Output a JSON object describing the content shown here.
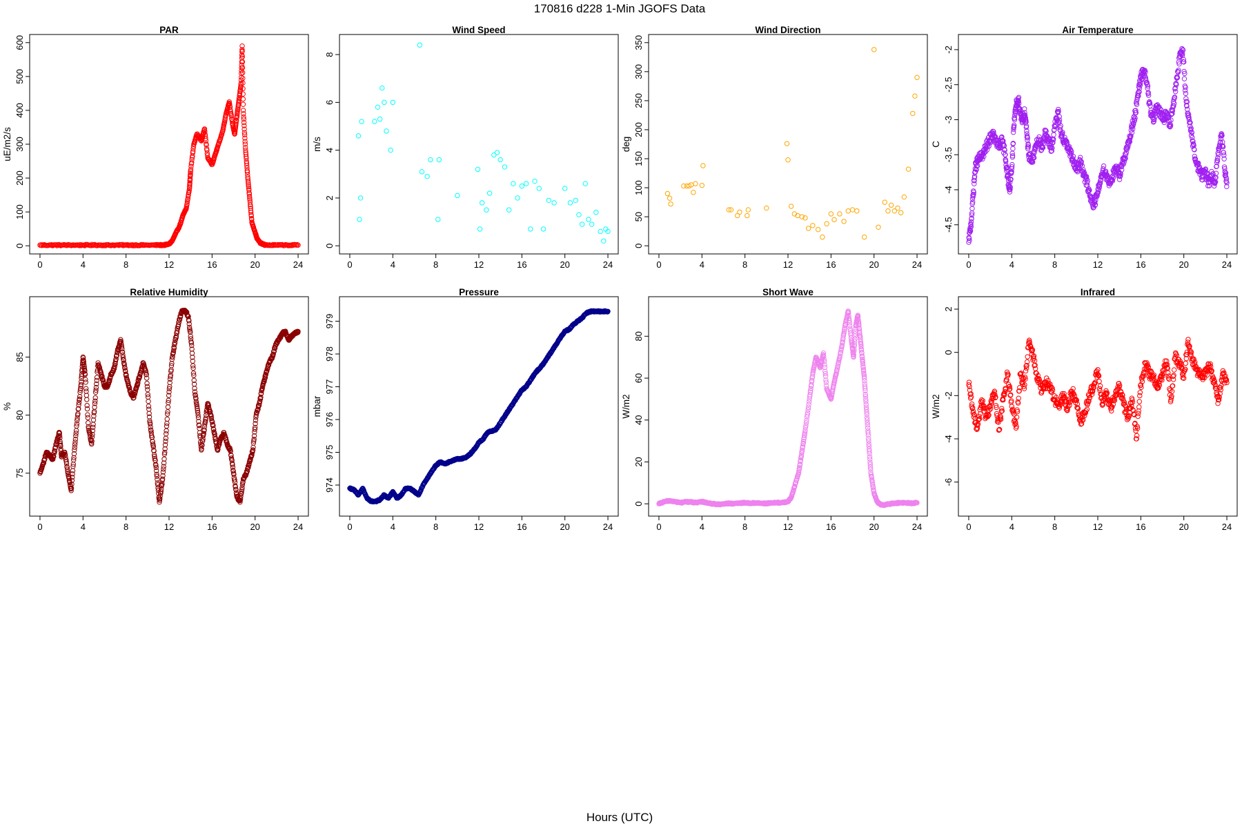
{
  "figure": {
    "title": "170816   d228   1-Min  JGOFS Data",
    "xlabel": "Hours (UTC)"
  },
  "chart_data": [
    {
      "type": "scatter",
      "title": "PAR",
      "ylabel": "uE/m2/s",
      "color": "#ff0000",
      "xlim": [
        0,
        24
      ],
      "ylim": [
        0,
        600
      ],
      "xticks": [
        0,
        4,
        8,
        12,
        16,
        20,
        24
      ],
      "yticks": [
        0,
        100,
        200,
        300,
        400,
        500,
        600
      ],
      "x": [
        0,
        1,
        2,
        3,
        4,
        5,
        6,
        7,
        8,
        9,
        10,
        11,
        11.5,
        12,
        12.3,
        12.6,
        13,
        13.3,
        13.6,
        13.9,
        14,
        14.3,
        14.6,
        15,
        15.3,
        15.6,
        16,
        16.3,
        16.6,
        17,
        17.3,
        17.6,
        17.9,
        18.1,
        18.3,
        18.5,
        18.7,
        18.8,
        18.9,
        19.1,
        19.3,
        19.5,
        19.7,
        20,
        20.2,
        20.5,
        20.8,
        21,
        22,
        23,
        24
      ],
      "y": [
        2,
        2,
        2,
        2,
        2,
        2,
        2,
        2,
        2,
        2,
        2,
        2,
        2,
        5,
        15,
        35,
        60,
        90,
        110,
        170,
        220,
        300,
        330,
        310,
        345,
        260,
        240,
        270,
        300,
        340,
        390,
        425,
        360,
        330,
        380,
        430,
        480,
        590,
        400,
        290,
        210,
        140,
        70,
        40,
        20,
        8,
        4,
        2,
        2,
        2,
        2
      ]
    },
    {
      "type": "scatter",
      "title": "Wind Speed",
      "ylabel": "m/s",
      "color": "#00ffff",
      "xlim": [
        0,
        24
      ],
      "ylim": [
        0,
        8.5
      ],
      "xticks": [
        0,
        4,
        8,
        12,
        16,
        20,
        24
      ],
      "yticks": [
        0,
        2,
        4,
        6,
        8
      ],
      "x": [
        0.8,
        0.9,
        1.0,
        1.1,
        2.3,
        2.6,
        2.8,
        3.0,
        3.2,
        3.4,
        3.8,
        4.0,
        6.5,
        6.7,
        7.2,
        7.5,
        8.2,
        8.3,
        10,
        11.9,
        12.1,
        12.3,
        12.7,
        13.0,
        13.4,
        13.7,
        14,
        14.4,
        14.8,
        15.2,
        15.6,
        16.0,
        16.4,
        16.8,
        17.2,
        17.6,
        18.0,
        18.5,
        19.0,
        20.0,
        20.5,
        21.0,
        21.3,
        21.6,
        21.9,
        22.2,
        22.5,
        22.9,
        23.3,
        23.6,
        23.8,
        24.0
      ],
      "y": [
        4.6,
        1.1,
        2.0,
        5.2,
        5.2,
        5.8,
        5.3,
        6.6,
        6.0,
        4.8,
        4.0,
        6.0,
        8.4,
        3.1,
        2.9,
        3.6,
        1.1,
        3.6,
        2.1,
        3.2,
        0.7,
        1.8,
        1.5,
        2.2,
        3.8,
        3.9,
        3.6,
        3.3,
        1.5,
        2.6,
        2.0,
        2.5,
        2.6,
        0.7,
        2.7,
        2.4,
        0.7,
        1.9,
        1.8,
        2.4,
        1.8,
        1.9,
        1.3,
        0.9,
        2.6,
        1.1,
        0.9,
        1.4,
        0.6,
        0.2,
        0.7,
        0.6
      ]
    },
    {
      "type": "scatter",
      "title": "Wind Direction",
      "ylabel": "deg",
      "color": "#ffa500",
      "xlim": [
        0,
        24
      ],
      "ylim": [
        0,
        350
      ],
      "xticks": [
        0,
        4,
        8,
        12,
        16,
        20,
        24
      ],
      "yticks": [
        0,
        50,
        100,
        150,
        200,
        250,
        300,
        350
      ],
      "x": [
        0.8,
        1.0,
        1.1,
        2.3,
        2.6,
        2.8,
        3.0,
        3.2,
        3.4,
        4.0,
        4.1,
        6.5,
        6.7,
        7.3,
        7.5,
        8.2,
        8.3,
        10,
        11.9,
        12.0,
        12.3,
        12.6,
        12.9,
        13.3,
        13.6,
        13.9,
        14.3,
        14.8,
        15.2,
        15.6,
        16.0,
        16.3,
        16.8,
        17.2,
        17.6,
        18.0,
        18.4,
        19.1,
        20.0,
        20.4,
        21.0,
        21.3,
        21.6,
        21.9,
        22.2,
        22.5,
        22.8,
        23.2,
        23.6,
        23.8,
        24.0
      ],
      "y": [
        90,
        82,
        72,
        103,
        103,
        103,
        105,
        92,
        107,
        104,
        138,
        62,
        62,
        52,
        58,
        52,
        62,
        65,
        176,
        148,
        68,
        55,
        52,
        50,
        48,
        30,
        35,
        28,
        15,
        38,
        55,
        45,
        55,
        42,
        60,
        62,
        60,
        15,
        338,
        32,
        75,
        60,
        70,
        60,
        65,
        57,
        84,
        132,
        228,
        258,
        290
      ]
    },
    {
      "type": "scatter",
      "title": "Air Temperature",
      "ylabel": "C",
      "color": "#a020f0",
      "xlim": [
        0,
        24
      ],
      "ylim": [
        -4.8,
        -1.9
      ],
      "xticks": [
        0,
        4,
        8,
        12,
        16,
        20,
        24
      ],
      "yticks": [
        -4.5,
        -4.0,
        -3.5,
        -3.0,
        -2.5,
        -2.0
      ],
      "x": [
        0,
        0.2,
        0.4,
        0.6,
        0.8,
        1.0,
        1.3,
        1.6,
        1.9,
        2.2,
        2.5,
        2.8,
        3.1,
        3.4,
        3.6,
        3.8,
        4.0,
        4.2,
        4.4,
        4.6,
        4.8,
        5.0,
        5.2,
        5.4,
        5.6,
        5.9,
        6.2,
        6.5,
        6.8,
        7.1,
        7.4,
        7.7,
        8.0,
        8.3,
        8.6,
        8.9,
        9.2,
        9.5,
        9.8,
        10.1,
        10.4,
        10.7,
        11.0,
        11.3,
        11.6,
        11.9,
        12.2,
        12.5,
        12.8,
        13.1,
        13.4,
        13.7,
        14.0,
        14.3,
        14.6,
        14.9,
        15.2,
        15.5,
        15.8,
        16.0,
        16.3,
        16.6,
        16.9,
        17.2,
        17.5,
        17.8,
        18.1,
        18.4,
        18.7,
        19.0,
        19.3,
        19.6,
        19.9,
        20.2,
        20.5,
        20.8,
        21.1,
        21.4,
        21.7,
        22.0,
        22.3,
        22.6,
        22.9,
        23.2,
        23.5,
        23.8,
        24.0
      ],
      "y": [
        -4.75,
        -4.5,
        -4.1,
        -3.7,
        -3.6,
        -3.55,
        -3.5,
        -3.4,
        -3.3,
        -3.2,
        -3.3,
        -3.4,
        -3.3,
        -3.5,
        -3.8,
        -4.0,
        -3.7,
        -3.1,
        -2.8,
        -2.7,
        -2.9,
        -3.0,
        -2.9,
        -3.2,
        -3.5,
        -3.6,
        -3.4,
        -3.3,
        -3.4,
        -3.2,
        -3.3,
        -3.4,
        -3.1,
        -2.9,
        -3.2,
        -3.3,
        -3.4,
        -3.5,
        -3.6,
        -3.7,
        -3.6,
        -3.8,
        -3.9,
        -4.1,
        -4.2,
        -4.1,
        -3.9,
        -3.7,
        -3.8,
        -3.9,
        -3.8,
        -3.7,
        -3.8,
        -3.6,
        -3.5,
        -3.3,
        -3.1,
        -2.9,
        -2.6,
        -2.4,
        -2.3,
        -2.5,
        -2.9,
        -3.0,
        -2.8,
        -2.9,
        -3.0,
        -2.9,
        -3.1,
        -2.8,
        -2.5,
        -2.1,
        -2.0,
        -2.7,
        -3.0,
        -3.3,
        -3.6,
        -3.7,
        -3.8,
        -3.75,
        -3.9,
        -3.8,
        -3.9,
        -3.5,
        -3.2,
        -3.7,
        -3.9
      ]
    },
    {
      "type": "scatter",
      "title": "Relative Humidity",
      "ylabel": "%",
      "color": "#8b0000",
      "xlim": [
        0,
        24
      ],
      "ylim": [
        72,
        89.5
      ],
      "xticks": [
        0,
        4,
        8,
        12,
        16,
        20,
        24
      ],
      "yticks": [
        75,
        80,
        85
      ],
      "x": [
        0,
        0.3,
        0.6,
        0.9,
        1.2,
        1.5,
        1.8,
        2.0,
        2.3,
        2.6,
        2.9,
        3.2,
        3.5,
        3.8,
        4.0,
        4.2,
        4.5,
        4.8,
        5.1,
        5.4,
        5.7,
        6.0,
        6.3,
        6.6,
        6.9,
        7.2,
        7.5,
        7.8,
        8.1,
        8.4,
        8.7,
        9.0,
        9.3,
        9.6,
        9.9,
        10.2,
        10.5,
        10.8,
        11.1,
        11.4,
        11.7,
        12.0,
        12.3,
        12.6,
        12.9,
        13.2,
        13.5,
        13.8,
        14.1,
        14.4,
        14.7,
        15.0,
        15.3,
        15.6,
        15.9,
        16.2,
        16.5,
        16.8,
        17.1,
        17.4,
        17.7,
        18.0,
        18.3,
        18.6,
        18.9,
        19.2,
        19.5,
        19.8,
        20.1,
        20.4,
        20.7,
        21.0,
        21.3,
        21.6,
        21.9,
        22.2,
        22.5,
        22.8,
        23.1,
        23.4,
        23.7,
        24.0
      ],
      "y": [
        75,
        75.8,
        76.8,
        76.5,
        76.2,
        77.5,
        78.5,
        76.4,
        76.8,
        75,
        73.5,
        77,
        80,
        82.5,
        85,
        83.5,
        79,
        77.5,
        81,
        84.5,
        83.5,
        82.5,
        82.5,
        83.5,
        84,
        85.5,
        86.5,
        84.5,
        83,
        82,
        81.5,
        82.5,
        83.5,
        84.5,
        83.5,
        79.5,
        77.5,
        75.5,
        72.5,
        74.5,
        78,
        82,
        85,
        86.5,
        88,
        89,
        89,
        88.5,
        86,
        82,
        80,
        77,
        79,
        81,
        80,
        78.5,
        77,
        78,
        78.5,
        77.5,
        77,
        75,
        73,
        72.5,
        74.5,
        75,
        76,
        77,
        80,
        81,
        82.5,
        83.5,
        84.5,
        85,
        86,
        86.5,
        87,
        87.2,
        86.5,
        86.8,
        87,
        87.2
      ]
    },
    {
      "type": "scatter",
      "title": "Pressure",
      "ylabel": "mbar",
      "color": "#00008b",
      "xlim": [
        0,
        24
      ],
      "ylim": [
        973.3,
        979.5
      ],
      "xticks": [
        0,
        4,
        8,
        12,
        16,
        20,
        24
      ],
      "yticks": [
        974,
        975,
        976,
        977,
        978,
        979
      ],
      "x": [
        0,
        0.4,
        0.8,
        1.2,
        1.6,
        2.0,
        2.4,
        2.8,
        3.2,
        3.6,
        4.0,
        4.4,
        4.8,
        5.2,
        5.6,
        6.0,
        6.4,
        6.8,
        7.2,
        7.6,
        8.0,
        8.4,
        8.8,
        9.2,
        9.6,
        10.0,
        10.4,
        10.8,
        11.2,
        11.6,
        12.0,
        12.4,
        12.8,
        13.2,
        13.6,
        14.0,
        14.4,
        14.8,
        15.2,
        15.6,
        16.0,
        16.4,
        16.8,
        17.2,
        17.6,
        18.0,
        18.4,
        18.8,
        19.2,
        19.6,
        20.0,
        20.4,
        20.8,
        21.2,
        21.6,
        22.0,
        22.4,
        22.8,
        23.2,
        23.6,
        24.0
      ],
      "y": [
        973.9,
        973.85,
        973.7,
        973.9,
        973.6,
        973.5,
        973.5,
        973.55,
        973.7,
        973.6,
        973.8,
        973.6,
        973.7,
        973.9,
        973.9,
        973.8,
        973.7,
        974.0,
        974.2,
        974.4,
        974.6,
        974.7,
        974.65,
        974.7,
        974.75,
        974.8,
        974.8,
        974.85,
        974.95,
        975.1,
        975.3,
        975.4,
        975.6,
        975.65,
        975.7,
        975.9,
        976.1,
        976.3,
        976.5,
        976.7,
        976.9,
        977.0,
        977.2,
        977.4,
        977.55,
        977.7,
        977.9,
        978.1,
        978.3,
        978.5,
        978.7,
        978.75,
        978.9,
        979.0,
        979.1,
        979.25,
        979.3,
        979.3,
        979.3,
        979.3,
        979.3
      ]
    },
    {
      "type": "scatter",
      "title": "Short Wave",
      "ylabel": "W/m2",
      "color": "#ee82ee",
      "xlim": [
        0,
        24
      ],
      "ylim": [
        -2,
        95
      ],
      "xticks": [
        0,
        4,
        8,
        12,
        16,
        20,
        24
      ],
      "yticks": [
        0,
        20,
        40,
        60,
        80
      ],
      "x": [
        0,
        0.5,
        1,
        1.5,
        2,
        2.5,
        3,
        3.5,
        4,
        4.5,
        5,
        5.5,
        6,
        6.5,
        7,
        7.5,
        8,
        8.5,
        9,
        9.5,
        10,
        10.5,
        11,
        11.5,
        12,
        12.3,
        12.6,
        13,
        13.3,
        13.6,
        14,
        14.3,
        14.6,
        15,
        15.3,
        15.6,
        16,
        16.3,
        16.6,
        17,
        17.3,
        17.6,
        17.9,
        18.1,
        18.3,
        18.5,
        18.7,
        18.9,
        19.1,
        19.3,
        19.5,
        19.7,
        20,
        20.3,
        20.6,
        21,
        21.5,
        22,
        22.5,
        23,
        23.5,
        24
      ],
      "y": [
        0,
        1,
        1.5,
        1,
        0.5,
        1,
        0.8,
        0.5,
        1,
        0.5,
        0,
        -0.3,
        0,
        0.2,
        0,
        0.3,
        0.5,
        0.3,
        0.4,
        0.3,
        0.2,
        0.4,
        0.5,
        0.6,
        1,
        3,
        8,
        15,
        25,
        35,
        50,
        62,
        70,
        65,
        72,
        55,
        50,
        58,
        65,
        75,
        85,
        92,
        78,
        70,
        85,
        90,
        80,
        70,
        60,
        45,
        30,
        15,
        5,
        1,
        -0.5,
        -0.5,
        0,
        0.3,
        0.5,
        0.5,
        0.3,
        0.5
      ]
    },
    {
      "type": "scatter",
      "title": "Infrared",
      "ylabel": "W/m2",
      "color": "#ff0000",
      "xlim": [
        0,
        24
      ],
      "ylim": [
        -7.2,
        2.2
      ],
      "xticks": [
        0,
        4,
        8,
        12,
        16,
        20,
        24
      ],
      "yticks": [
        -6,
        -4,
        -2,
        0,
        2
      ],
      "x": [
        0,
        0.4,
        0.8,
        1.2,
        1.6,
        2.0,
        2.4,
        2.8,
        3.2,
        3.6,
        4.0,
        4.4,
        4.8,
        5.2,
        5.6,
        6.0,
        6.4,
        6.8,
        7.2,
        7.6,
        8.0,
        8.4,
        8.8,
        9.2,
        9.6,
        10.0,
        10.4,
        10.8,
        11.2,
        11.6,
        12.0,
        12.4,
        12.8,
        13.2,
        13.6,
        14.0,
        14.4,
        14.8,
        15.2,
        15.6,
        16.0,
        16.4,
        16.8,
        17.2,
        17.6,
        18.0,
        18.4,
        18.8,
        19.2,
        19.6,
        20.0,
        20.4,
        20.8,
        21.2,
        21.6,
        22.0,
        22.4,
        22.8,
        23.2,
        23.6,
        24.0
      ],
      "y": [
        -1.5,
        -2.8,
        -3.5,
        -2.2,
        -3.0,
        -2.5,
        -1.8,
        -3.6,
        -2.2,
        -1.0,
        -2.5,
        -3.5,
        -1.0,
        -1.5,
        0.5,
        -0.2,
        -1.2,
        -1.8,
        -1.4,
        -1.6,
        -2.2,
        -2.5,
        -2.0,
        -2.6,
        -1.8,
        -2.2,
        -3.2,
        -2.8,
        -2.0,
        -1.6,
        -0.8,
        -2.4,
        -1.9,
        -2.6,
        -2.0,
        -1.6,
        -2.4,
        -3.0,
        -2.2,
        -4.0,
        -1.5,
        -0.5,
        -1.0,
        -1.2,
        -1.6,
        -1.0,
        -0.4,
        -2.2,
        -0.2,
        -0.5,
        -1.2,
        0.6,
        -0.3,
        -0.8,
        -1.1,
        -1.0,
        -0.6,
        -1.4,
        -2.2,
        -1.0,
        -1.4
      ]
    }
  ]
}
